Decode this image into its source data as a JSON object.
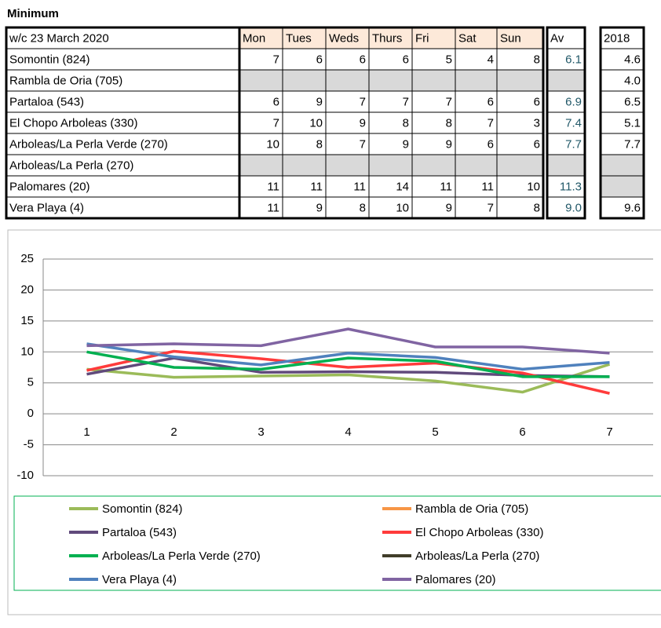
{
  "title": "Minimum",
  "table": {
    "header": [
      "w/c 23 March 2020",
      "Mon",
      "Tues",
      "Weds",
      "Thurs",
      "Fri",
      "Sat",
      "Sun",
      "Av",
      "2018"
    ],
    "rows": [
      {
        "name": "Somontin (824)",
        "cells": [
          7,
          6,
          6,
          6,
          5,
          4,
          8,
          6.1,
          4.6
        ]
      },
      {
        "name": "Rambla de Oria (705)",
        "cells": [
          null,
          null,
          null,
          null,
          null,
          null,
          null,
          null,
          "4.0"
        ]
      },
      {
        "name": "Partaloa (543)",
        "cells": [
          6,
          9,
          7,
          7,
          7,
          6,
          6,
          6.9,
          6.5
        ]
      },
      {
        "name": "El Chopo Arboleas (330)",
        "cells": [
          7,
          10,
          9,
          8,
          8,
          7,
          3,
          7.4,
          5.1
        ]
      },
      {
        "name": "Arboleas/La Perla Verde (270)",
        "cells": [
          10,
          8,
          7,
          9,
          9,
          6,
          6,
          7.7,
          7.7
        ]
      },
      {
        "name": "Arboleas/La Perla (270)",
        "cells": [
          null,
          null,
          null,
          null,
          null,
          null,
          null,
          null,
          null
        ]
      },
      {
        "name": "Palomares (20)",
        "cells": [
          11,
          11,
          11,
          14,
          11,
          11,
          10,
          11.3,
          null
        ]
      },
      {
        "name": "Vera Playa (4)",
        "cells": [
          "11",
          9,
          8,
          10,
          9,
          7,
          8,
          "9.0",
          9.6
        ]
      }
    ]
  },
  "chart_data": {
    "type": "line",
    "categories": [
      1,
      2,
      3,
      4,
      5,
      6,
      7
    ],
    "ylim": [
      -10,
      25
    ],
    "yticks": [
      -10,
      -5,
      0,
      5,
      10,
      15,
      20,
      25
    ],
    "grid": true,
    "series": [
      {
        "name": "Somontin (824)",
        "color": "#9bbb59",
        "values": [
          7.2,
          5.9,
          6.1,
          6.3,
          5.3,
          3.5,
          8.0
        ]
      },
      {
        "name": "Rambla de Oria (705)",
        "color": "#f79646",
        "values": [
          null,
          null,
          null,
          null,
          null,
          null,
          null
        ]
      },
      {
        "name": "Partaloa (543)",
        "color": "#604a7b",
        "values": [
          6.4,
          9.0,
          6.7,
          6.8,
          6.7,
          6.2,
          6.0
        ]
      },
      {
        "name": "El Chopo Arboleas (330)",
        "color": "#ff3b3b",
        "values": [
          7.0,
          10.1,
          8.9,
          7.5,
          8.2,
          6.6,
          3.3
        ]
      },
      {
        "name": "Arboleas/La Perla Verde (270)",
        "color": "#00b050",
        "values": [
          10.0,
          7.5,
          7.2,
          9.0,
          8.5,
          6.0,
          6.0
        ]
      },
      {
        "name": "Arboleas/La Perla (270)",
        "color": "#403d2a",
        "values": [
          null,
          null,
          null,
          null,
          null,
          null,
          null
        ]
      },
      {
        "name": "Vera Playa (4)",
        "color": "#4f81bd",
        "values": [
          11.3,
          9.2,
          7.9,
          9.8,
          9.1,
          7.2,
          8.3
        ]
      },
      {
        "name": "Palomares (20)",
        "color": "#8064a2",
        "values": [
          11.0,
          11.3,
          11.0,
          13.7,
          10.8,
          10.8,
          9.8
        ]
      }
    ]
  }
}
